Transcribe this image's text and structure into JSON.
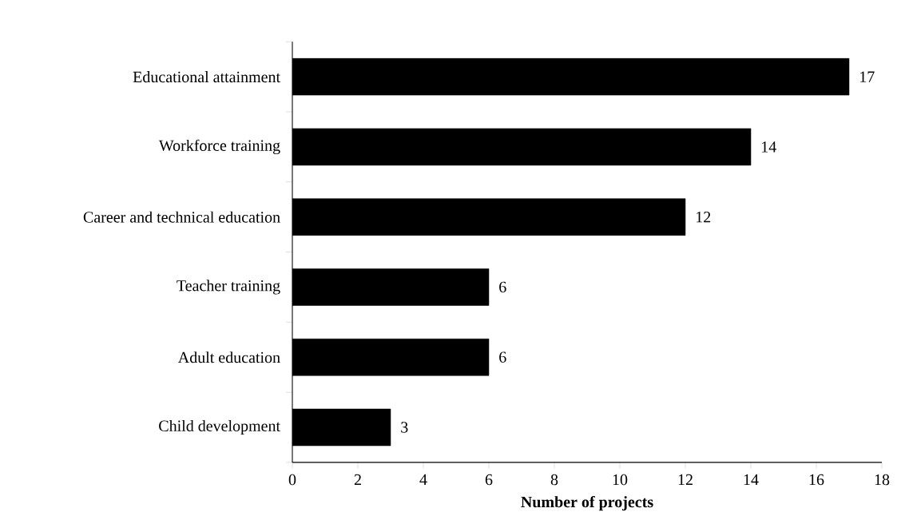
{
  "chart_data": {
    "type": "bar",
    "orientation": "horizontal",
    "categories": [
      "Educational attainment",
      "Workforce training",
      "Career and technical education",
      "Teacher training",
      "Adult education",
      "Child development"
    ],
    "values": [
      17,
      14,
      12,
      6,
      6,
      3
    ],
    "color": "#000000",
    "xlim": [
      0,
      18
    ],
    "xticks": [
      0,
      2,
      4,
      6,
      8,
      10,
      12,
      14,
      16,
      18
    ],
    "xlabel": "Number of projects",
    "data_labels": true
  }
}
